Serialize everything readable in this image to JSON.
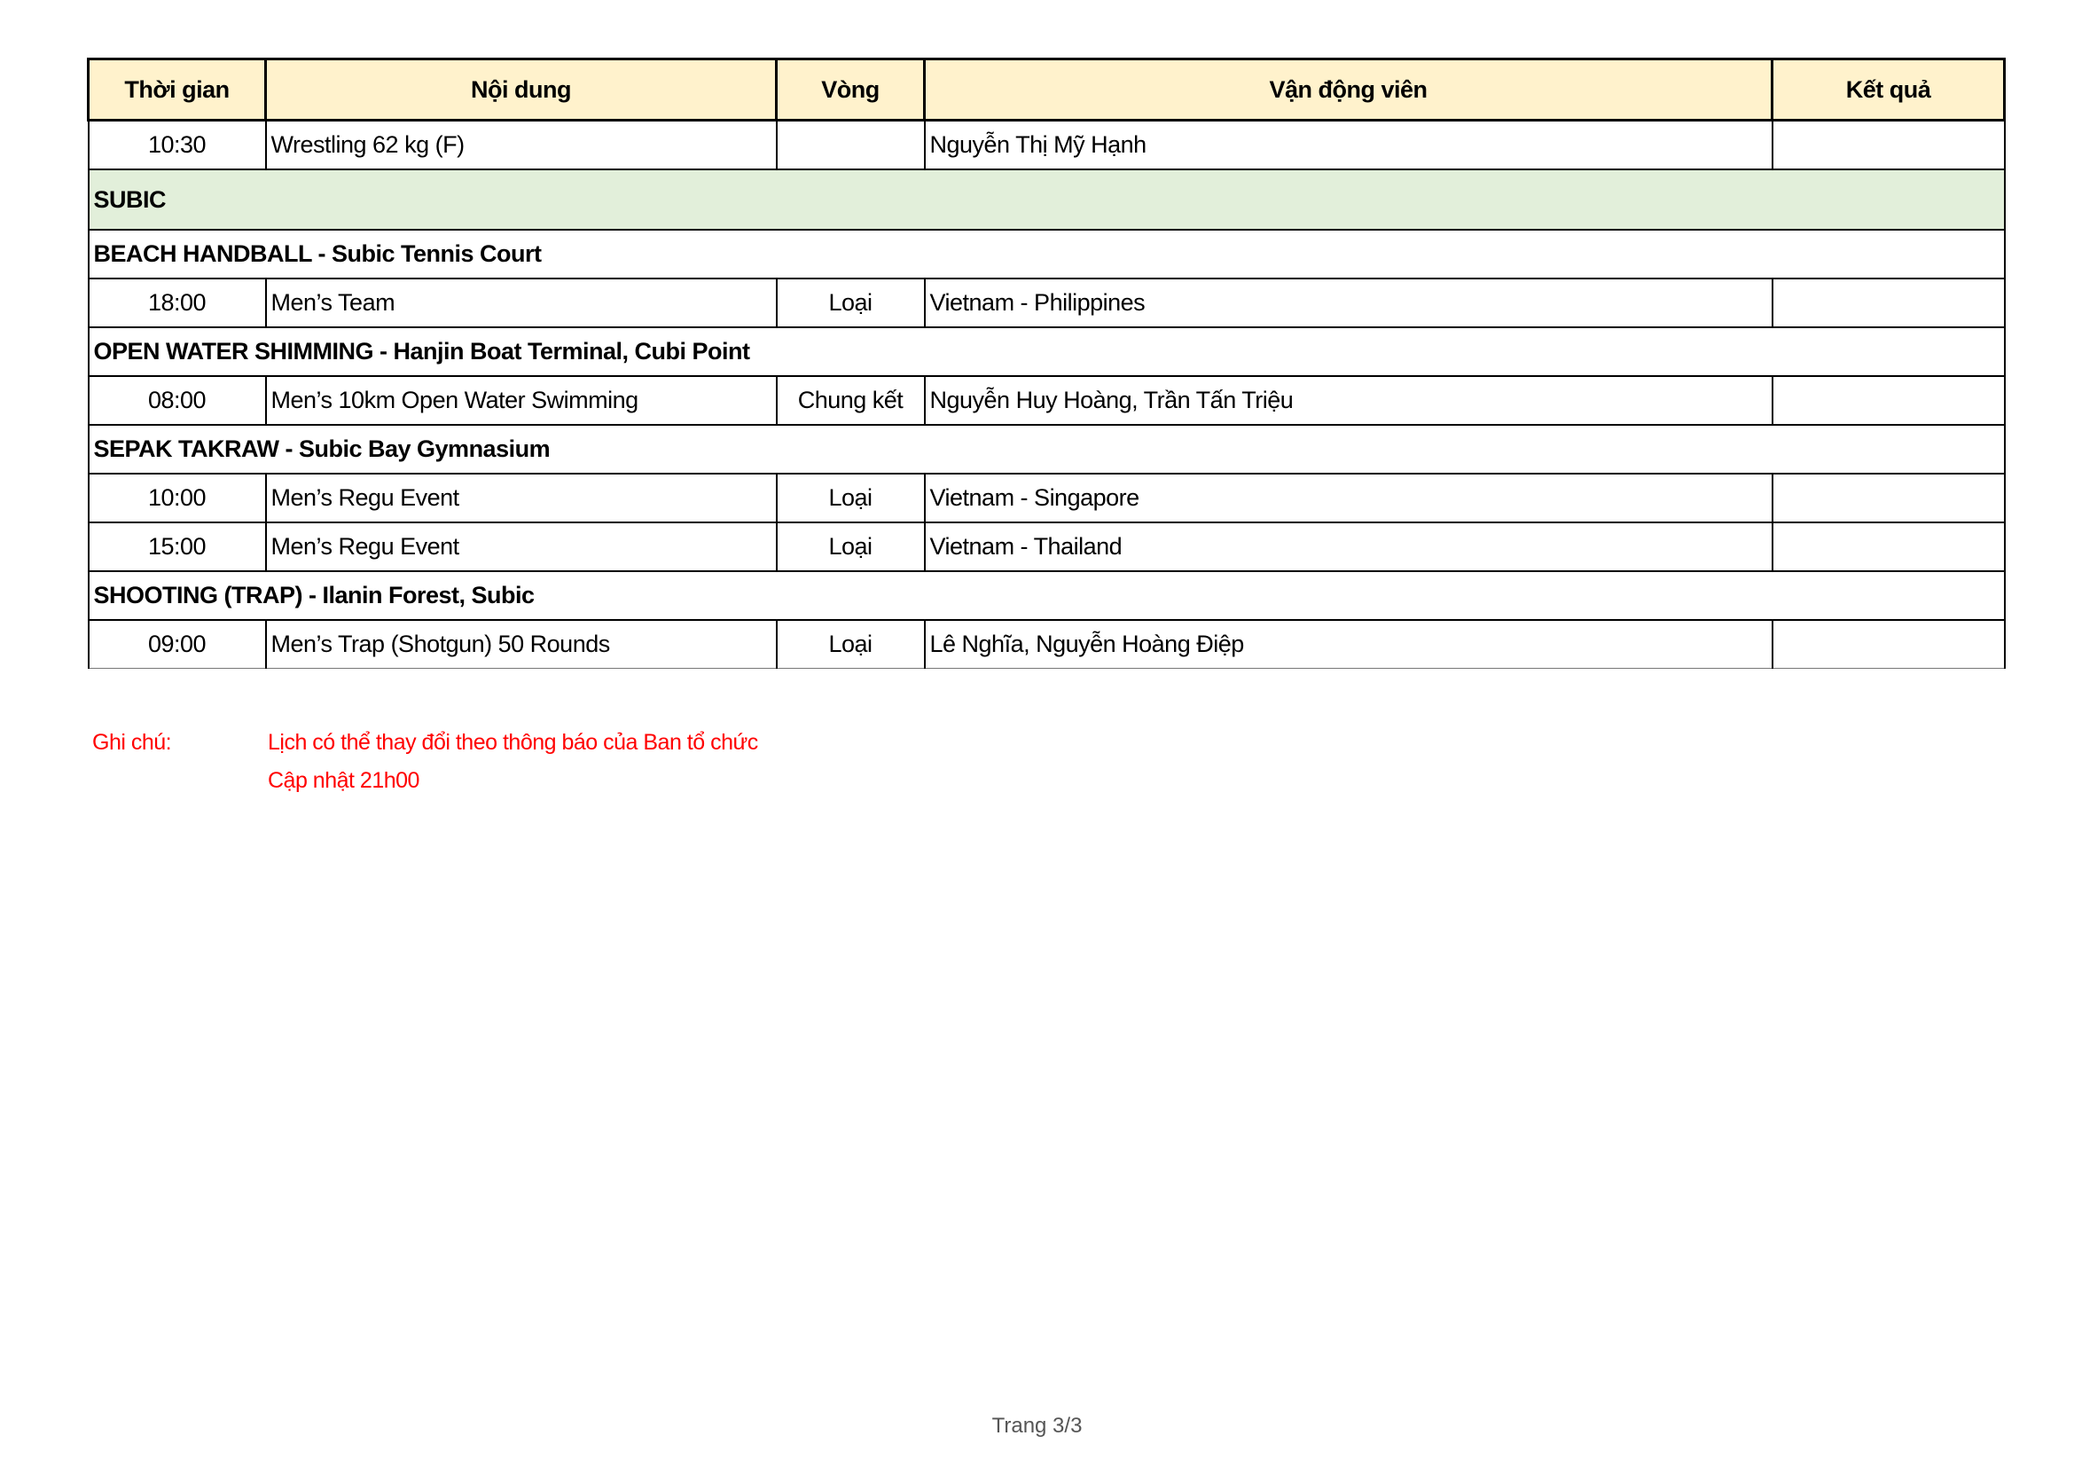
{
  "header": {
    "time": "Thời gian",
    "event": "Nội dung",
    "round": "Vòng",
    "athletes": "Vận động viên",
    "result": "Kết quả"
  },
  "rows": [
    {
      "time": "10:30",
      "event": "Wrestling 62 kg (F)",
      "round": "",
      "athletes": "Nguyễn Thị Mỹ Hạnh",
      "result": ""
    }
  ],
  "venue": "SUBIC",
  "sections": [
    {
      "title": "BEACH HANDBALL - Subic Tennis Court",
      "rows": [
        {
          "time": "18:00",
          "event": "Men’s Team",
          "round": "Loại",
          "athletes": "Vietnam - Philippines",
          "result": ""
        }
      ]
    },
    {
      "title": "OPEN WATER SHIMMING - Hanjin Boat Terminal, Cubi Point",
      "rows": [
        {
          "time": "08:00",
          "event": "Men’s 10km Open Water Swimming",
          "round": "Chung kết",
          "athletes": "Nguyễn Huy Hoàng, Trần Tấn Triệu",
          "result": ""
        }
      ]
    },
    {
      "title": "SEPAK TAKRAW - Subic Bay Gymnasium",
      "rows": [
        {
          "time": "10:00",
          "event": "Men’s Regu Event",
          "round": "Loại",
          "athletes": "Vietnam - Singapore",
          "result": ""
        },
        {
          "time": "15:00",
          "event": "Men’s Regu Event",
          "round": "Loại",
          "athletes": "Vietnam - Thailand",
          "result": ""
        }
      ]
    },
    {
      "title": "SHOOTING (TRAP) - Ilanin Forest, Subic",
      "rows": [
        {
          "time": "09:00",
          "event": "Men’s Trap (Shotgun) 50 Rounds",
          "round": "Loại",
          "athletes": "Lê Nghĩa, Nguyễn Hoàng Điệp",
          "result": ""
        }
      ]
    }
  ],
  "notes": {
    "label": "Ghi chú:",
    "line1": "Lịch có thể thay đổi theo thông báo của Ban tổ chức",
    "line2": "Cập nhật 21h00"
  },
  "footer": "Trang 3/3",
  "colors": {
    "header_bg": "#fff2cc",
    "venue_bg": "#e2efda",
    "note_text": "#ff0000"
  }
}
